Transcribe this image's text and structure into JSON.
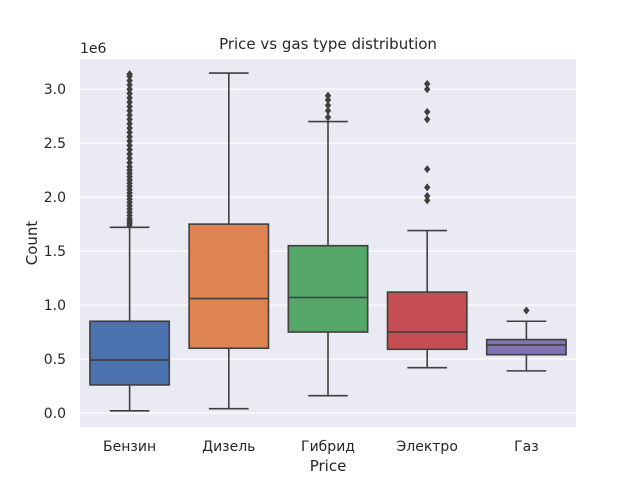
{
  "chart_data": {
    "type": "box",
    "title": "Price vs gas type distribution",
    "xlabel": "Price",
    "ylabel": "Count",
    "y_offset_label": "1e6",
    "ylim": [
      -0.13,
      3.28
    ],
    "yticks": [
      0.0,
      0.5,
      1.0,
      1.5,
      2.0,
      2.5,
      3.0
    ],
    "ytick_labels": [
      "0.0",
      "0.5",
      "1.0",
      "1.5",
      "2.0",
      "2.5",
      "3.0"
    ],
    "grid": true,
    "legend": "none",
    "unit_scale": "1e6",
    "categories": [
      "Бензин",
      "Дизель",
      "Гибрид",
      "Электро",
      "Газ"
    ],
    "boxes": [
      {
        "category": "Бензин",
        "whisker_low": 0.02,
        "q1": 0.26,
        "median": 0.49,
        "q3": 0.85,
        "whisker_high": 1.72,
        "color": "#4c72b0",
        "outliers": [
          1.74,
          1.76,
          1.78,
          1.8,
          1.83,
          1.86,
          1.89,
          1.92,
          1.95,
          1.98,
          2.01,
          2.04,
          2.07,
          2.1,
          2.13,
          2.16,
          2.19,
          2.22,
          2.25,
          2.28,
          2.32,
          2.36,
          2.4,
          2.44,
          2.48,
          2.52,
          2.56,
          2.6,
          2.64,
          2.68,
          2.72,
          2.76,
          2.8,
          2.84,
          2.88,
          2.92,
          2.96,
          3.0,
          3.04,
          3.08,
          3.12,
          3.14
        ]
      },
      {
        "category": "Дизель",
        "whisker_low": 0.04,
        "q1": 0.6,
        "median": 1.06,
        "q3": 1.75,
        "whisker_high": 3.15,
        "color": "#dd8452",
        "outliers": []
      },
      {
        "category": "Гибрид",
        "whisker_low": 0.16,
        "q1": 0.75,
        "median": 1.07,
        "q3": 1.55,
        "whisker_high": 2.7,
        "color": "#55a868",
        "outliers": [
          2.74,
          2.8,
          2.85,
          2.9,
          2.94
        ]
      },
      {
        "category": "Электро",
        "whisker_low": 0.42,
        "q1": 0.59,
        "median": 0.75,
        "q3": 1.12,
        "whisker_high": 1.69,
        "color": "#c44e52",
        "outliers": [
          1.97,
          2.01,
          2.09,
          2.26,
          2.72,
          2.79,
          3.0,
          3.05
        ]
      },
      {
        "category": "Газ",
        "whisker_low": 0.39,
        "q1": 0.54,
        "median": 0.63,
        "q3": 0.68,
        "whisker_high": 0.85,
        "color": "#8172b3",
        "outliers": [
          0.95
        ]
      }
    ]
  }
}
